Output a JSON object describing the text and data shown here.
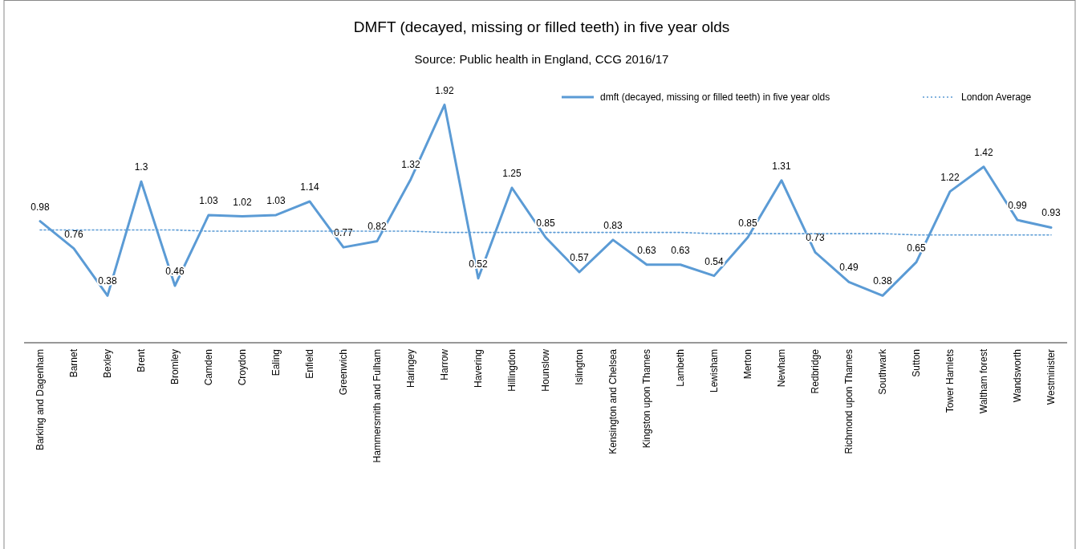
{
  "chart_data": {
    "type": "line",
    "title": "DMFT (decayed, missing or filled teeth) in five year olds",
    "subtitle": "Source: Public health in England, CCG 2016/17",
    "categories": [
      "Barking and Dagenham",
      "Barnet",
      "Bexley",
      "Brent",
      "Bromley",
      "Camden",
      "Croydon",
      "Ealing",
      "Enfield",
      "Greenwich",
      "Hammersmith and Fulham",
      "Haringey",
      "Harrow",
      "Havering",
      "Hillingdon",
      "Hounslow",
      "Islington",
      "Kensington and Chelsea",
      "Kingston upon Thames",
      "Lambeth",
      "Lewisham",
      "Merton",
      "Newham",
      "Redbridge",
      "Richmond upon Thames",
      "Southwark",
      "Sutton",
      "Tower Hamlets",
      "Waltham forest",
      "Wandsworth",
      "Westminister"
    ],
    "series": [
      {
        "name": "dmft (decayed, missing or filled teeth) in five year olds",
        "color": "#5b9bd5",
        "line_style": "solid",
        "values": [
          0.98,
          0.76,
          0.38,
          1.3,
          0.46,
          1.03,
          1.02,
          1.03,
          1.14,
          0.77,
          0.82,
          1.32,
          1.92,
          0.52,
          1.25,
          0.85,
          0.57,
          0.83,
          0.63,
          0.63,
          0.54,
          0.85,
          1.31,
          0.73,
          0.49,
          0.38,
          0.65,
          1.22,
          1.42,
          0.99,
          0.93
        ],
        "value_labels": [
          "0.98",
          "0.76",
          "0.38",
          "1.3",
          "0.46",
          "1.03",
          "1.02",
          "1.03",
          "1.14",
          "0.77",
          "0.82",
          "1.32",
          "1.92",
          "0.52",
          "1.25",
          "0.85",
          "0.57",
          "0.83",
          "0.63",
          "0.63",
          "0.54",
          "0.85",
          "1.31",
          "0.73",
          "0.49",
          "0.38",
          "0.65",
          "1.22",
          "1.42",
          "0.99",
          "0.93"
        ]
      },
      {
        "name": "London Average",
        "color": "#5b9bd5",
        "line_style": "dotted",
        "values": [
          0.91,
          0.91,
          0.91,
          0.91,
          0.91,
          0.9,
          0.9,
          0.9,
          0.9,
          0.9,
          0.9,
          0.9,
          0.89,
          0.89,
          0.89,
          0.89,
          0.89,
          0.89,
          0.89,
          0.89,
          0.88,
          0.88,
          0.88,
          0.88,
          0.88,
          0.88,
          0.87,
          0.87,
          0.87,
          0.87,
          0.87
        ]
      }
    ],
    "tick_labels": "x",
    "legend": "top right",
    "marker": "none"
  }
}
